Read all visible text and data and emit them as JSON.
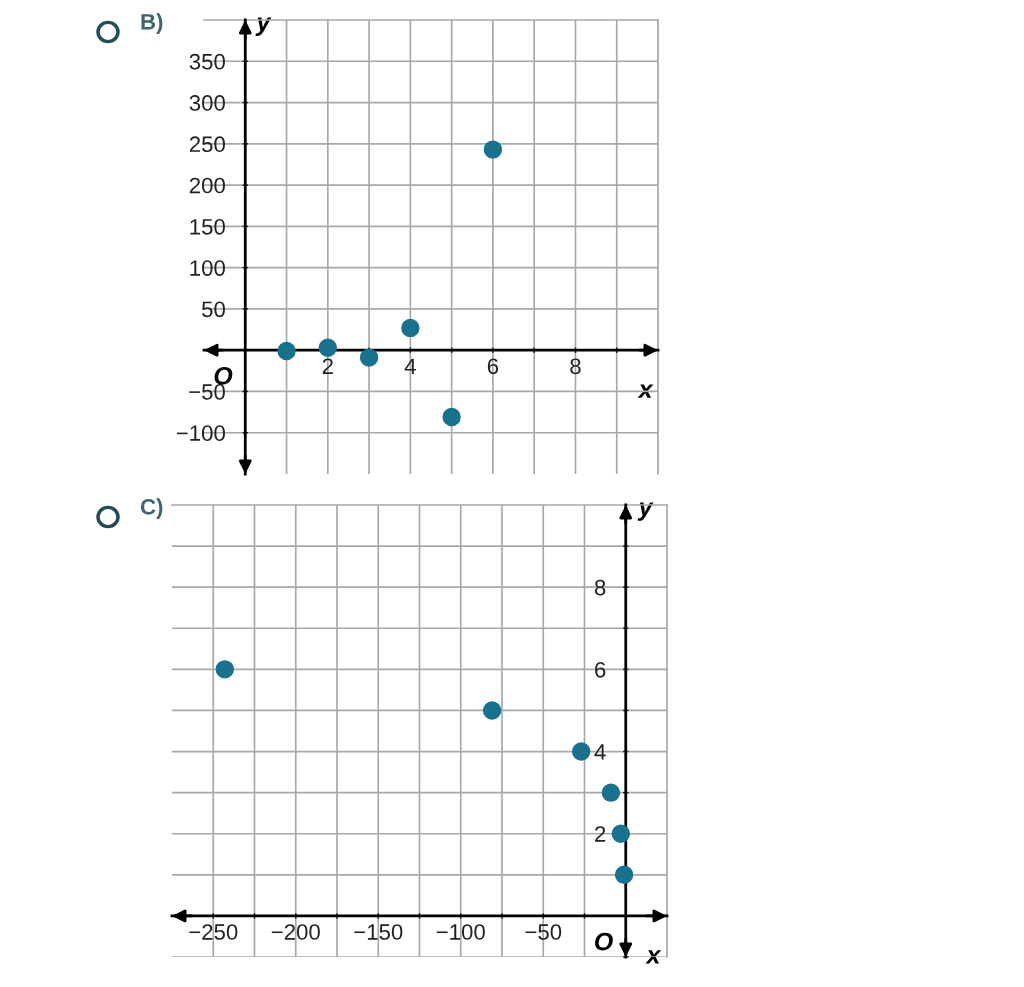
{
  "chart_data": [
    {
      "type": "scatter",
      "title": "B)",
      "xlabel": "x",
      "ylabel": "y",
      "annotations": [
        "O"
      ],
      "grid": true,
      "marker": "circle",
      "xlim": [
        -1,
        10
      ],
      "ylim": [
        -150,
        400
      ],
      "xticks": [
        {
          "value": 1,
          "label": null
        },
        2,
        {
          "value": 3,
          "label": null
        },
        4,
        {
          "value": 5,
          "label": null
        },
        6,
        {
          "value": 7,
          "label": null
        },
        8,
        {
          "value": 9,
          "label": null
        }
      ],
      "yticks": [
        {
          "value": -100,
          "label": "−100"
        },
        {
          "value": -50,
          "label": "−50"
        },
        {
          "value": 0,
          "label": null
        },
        50,
        100,
        150,
        200,
        250,
        300,
        350
      ],
      "series": [
        {
          "color": "#17728f",
          "x": [
            1,
            2,
            3,
            4,
            5,
            6
          ],
          "values": [
            -1,
            3,
            -9,
            27,
            -81,
            243
          ]
        }
      ]
    },
    {
      "type": "scatter",
      "title": "C)",
      "xlabel": "x",
      "ylabel": "y",
      "annotations": [
        "O"
      ],
      "grid": true,
      "marker": "circle",
      "xlim": [
        -275,
        25
      ],
      "ylim": [
        -1,
        10
      ],
      "xticks": [
        {
          "value": -250,
          "label": "−250"
        },
        {
          "value": -225,
          "label": null
        },
        {
          "value": -200,
          "label": "−200"
        },
        {
          "value": -175,
          "label": null
        },
        {
          "value": -150,
          "label": "−150"
        },
        {
          "value": -125,
          "label": null
        },
        {
          "value": -100,
          "label": "−100"
        },
        {
          "value": -75,
          "label": null
        },
        {
          "value": -50,
          "label": "−50"
        },
        {
          "value": -25,
          "label": null
        }
      ],
      "yticks": [
        {
          "value": -1,
          "label": null
        },
        {
          "value": 1,
          "label": null
        },
        2,
        {
          "value": 3,
          "label": null
        },
        4,
        {
          "value": 5,
          "label": null
        },
        6,
        {
          "value": 7,
          "label": null
        },
        8,
        {
          "value": 9,
          "label": null
        }
      ],
      "series": [
        {
          "color": "#17728f",
          "x": [
            -243,
            -81,
            -27,
            -9,
            -3,
            -1
          ],
          "values": [
            6,
            5,
            4,
            3,
            2,
            1
          ]
        }
      ]
    }
  ]
}
